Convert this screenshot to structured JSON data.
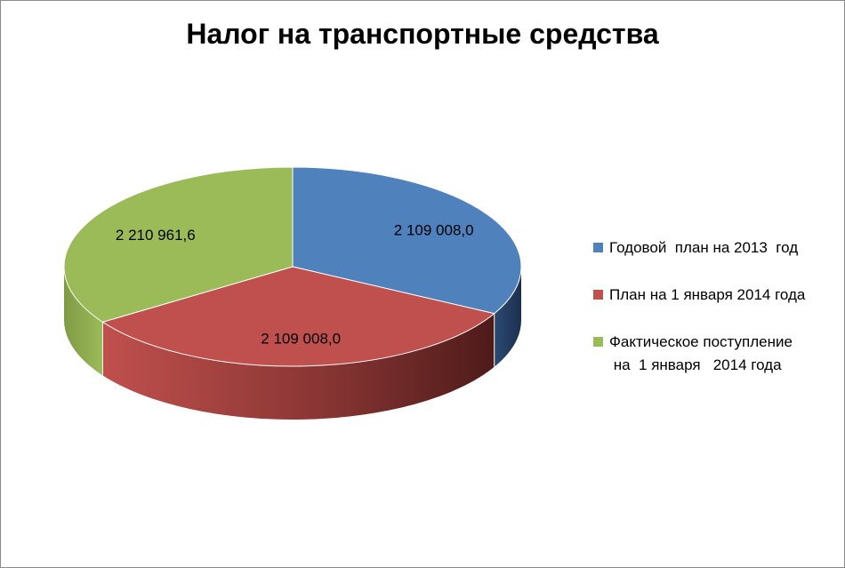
{
  "chart_data": {
    "type": "pie",
    "title": "Налог на транспортные средства",
    "slices": [
      {
        "name": "Годовой  план на 2013  год",
        "value": 2109008.0,
        "label": "2 109 008,0",
        "color": "#4f81bd",
        "dark": "#243a5e"
      },
      {
        "name": "План на 1 января 2014 года",
        "value": 2109008.0,
        "label": "2 109 008,0",
        "color": "#c0504d",
        "dark": "#5a1f1d"
      },
      {
        "name": "Фактическое поступление\n на  1 января   2014 года",
        "value": 2210961.6,
        "label": "2 210 961,6",
        "color": "#9bbb59",
        "dark": "#5b7430"
      }
    ],
    "legend_position": "right",
    "style": "3d"
  }
}
